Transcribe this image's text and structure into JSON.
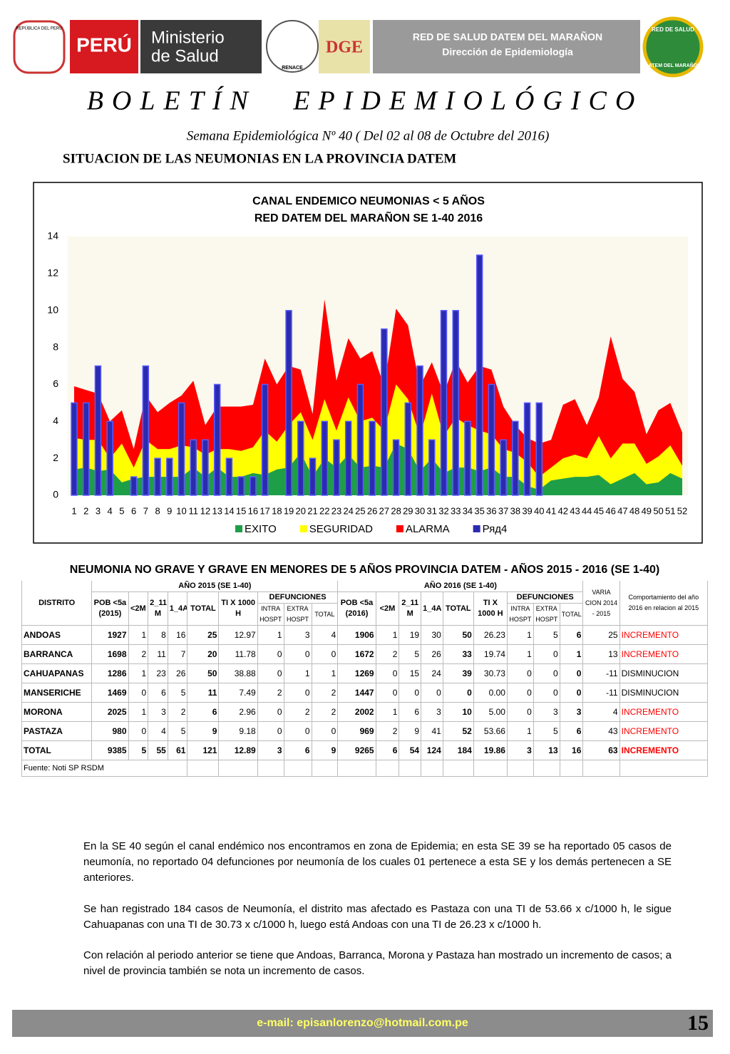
{
  "header": {
    "republica": "REPÚBLICA DEL PERÚ",
    "peru": "PERÚ",
    "ministerio": "Ministerio",
    "de_salud": "de Salud",
    "renace": "RENACE",
    "dge": "DGE",
    "red_title": "RED DE SALUD DATEM DEL MARAÑON",
    "red_subtitle": "Dirección de Epidemiología",
    "logo_top": "RED DE SALUD",
    "logo_bottom": "DATEM DEL MARAÑON"
  },
  "title": "BOLETÍN EPIDEMIOLÓGICO",
  "subtitle": "Semana Epidemiológica Nº 40 ( Del  02 al 08 de Octubre del 2016)",
  "section": "SITUACION DE LAS NEUMONIAS EN LA PROVINCIA DATEM",
  "chart_data": {
    "type": "area_bar",
    "title": "CANAL ENDEMICO NEUMONIAS < 5 AÑOS",
    "subtitle": "RED DATEM DEL MARAÑON  SE 1-40  2016",
    "categories": [
      "1",
      "2",
      "3",
      "4",
      "5",
      "6",
      "7",
      "8",
      "9",
      "10",
      "11",
      "12",
      "13",
      "14",
      "15",
      "16",
      "17",
      "18",
      "19",
      "20",
      "21",
      "22",
      "23",
      "24",
      "25",
      "26",
      "27",
      "28",
      "29",
      "30",
      "31",
      "32",
      "33",
      "34",
      "35",
      "36",
      "37",
      "38",
      "39",
      "40",
      "41",
      "42",
      "43",
      "44",
      "45",
      "46",
      "47",
      "48",
      "49",
      "50",
      "51",
      "52"
    ],
    "series": [
      {
        "name": "ALARMA",
        "color": "#ff0000",
        "kind": "area",
        "values": [
          5.9,
          5.7,
          5.5,
          4.0,
          4.6,
          2.5,
          5.4,
          4.5,
          5.0,
          5.4,
          6.2,
          3.8,
          4.8,
          4.8,
          4.8,
          4.9,
          7.4,
          6.0,
          7.0,
          6.8,
          4.4,
          10.6,
          6.2,
          8.5,
          7.4,
          7.8,
          5.9,
          10.1,
          9.2,
          5.9,
          7.2,
          5.5,
          7.3,
          6.1,
          7.0,
          6.8,
          4.8,
          3.8,
          3.1,
          2.8,
          3.0,
          4.9,
          5.2,
          3.8,
          5.3,
          8.6,
          6.3,
          5.6,
          3.3,
          4.6,
          5.0,
          3.4
        ]
      },
      {
        "name": "SEGURIDAD",
        "color": "#ffff00",
        "kind": "area",
        "values": [
          3.1,
          3.0,
          3.0,
          2.0,
          2.8,
          1.5,
          3.0,
          2.5,
          2.5,
          2.7,
          2.6,
          2.2,
          2.5,
          2.5,
          2.4,
          2.6,
          3.5,
          2.9,
          3.8,
          4.5,
          3.0,
          5.2,
          3.5,
          5.3,
          4.0,
          4.2,
          3.5,
          6.0,
          5.2,
          3.2,
          5.5,
          3.2,
          4.2,
          3.8,
          3.5,
          3.3,
          2.5,
          2.3,
          1.8,
          1.0,
          1.5,
          2.0,
          2.2,
          2.0,
          3.2,
          2.0,
          2.8,
          2.8,
          1.7,
          2.1,
          2.7,
          1.6
        ]
      },
      {
        "name": "EXITO",
        "color": "#1f9e48",
        "kind": "area",
        "values": [
          1.4,
          1.5,
          1.3,
          1.4,
          0.7,
          0.9,
          1.0,
          1.0,
          1.0,
          1.0,
          1.5,
          1.0,
          1.5,
          1.0,
          1.0,
          1.2,
          1.1,
          1.4,
          1.5,
          2.3,
          1.0,
          2.0,
          1.5,
          2.2,
          1.5,
          1.6,
          1.5,
          2.8,
          2.5,
          1.3,
          2.0,
          1.2,
          1.5,
          1.5,
          1.3,
          1.5,
          1.0,
          1.0,
          0.5,
          0.3,
          0.8,
          0.9,
          1.0,
          1.0,
          1.1,
          0.6,
          0.9,
          1.2,
          0.6,
          0.7,
          1.2,
          0.9
        ]
      },
      {
        "name": "Ряд4",
        "color": "#2b2bb0",
        "kind": "bar",
        "values": [
          5,
          5,
          7,
          4,
          0,
          1,
          7,
          2,
          2,
          5,
          3,
          3,
          6,
          2,
          1,
          1,
          6,
          0,
          10,
          4,
          2,
          4,
          3,
          4,
          6,
          4,
          9,
          3,
          5,
          7,
          3,
          10,
          10,
          4,
          13,
          6,
          3,
          4,
          5,
          5,
          null,
          null,
          null,
          null,
          null,
          null,
          null,
          null,
          null,
          null,
          null,
          null
        ]
      }
    ],
    "legend_order": [
      2,
      1,
      0,
      3
    ],
    "ylim": [
      0,
      14
    ],
    "yticks": [
      0,
      2,
      4,
      6,
      8,
      10,
      12,
      14
    ]
  },
  "table": {
    "title": "NEUMONIA NO GRAVE Y GRAVE EN MENORES DE 5 AÑOS PROVINCIA DATEM  - AÑOS 2015 - 2016 (SE 1-40)",
    "groups": [
      "AÑO 2015 (SE 1-40)",
      "AÑO 2016 (SE 1-40)"
    ],
    "defunciones": [
      "DEFUNCIONES",
      "DEFUNCIONES"
    ],
    "columns": [
      "DISTRITO",
      "POB <5a (2015)",
      "<2M",
      "2_11 M",
      "1_4A",
      "TOTAL",
      "TI X 1000 H",
      "INTRA HOSPT",
      "EXTRA HOSPT",
      "TOTAL",
      "POB <5a (2016)",
      "<2M",
      "2_11 M",
      "1_4A",
      "TOTAL",
      "TI X 1000 H",
      "INTRA HOSPT",
      "EXTRA HOSPT",
      "TOTAL",
      "VARIA CION 2014 - 2015",
      "Comportamiento del año 2016 en relacion al 2015"
    ],
    "rows": [
      [
        "ANDOAS",
        "1927",
        "1",
        "8",
        "16",
        "25",
        "12.97",
        "1",
        "3",
        "4",
        "1906",
        "1",
        "19",
        "30",
        "50",
        "26.23",
        "1",
        "5",
        "6",
        "25",
        "INCREMENTO"
      ],
      [
        "BARRANCA",
        "1698",
        "2",
        "11",
        "7",
        "20",
        "11.78",
        "0",
        "0",
        "0",
        "1672",
        "2",
        "5",
        "26",
        "33",
        "19.74",
        "1",
        "0",
        "1",
        "13",
        "INCREMENTO"
      ],
      [
        "CAHUAPANAS",
        "1286",
        "1",
        "23",
        "26",
        "50",
        "38.88",
        "0",
        "1",
        "1",
        "1269",
        "0",
        "15",
        "24",
        "39",
        "30.73",
        "0",
        "0",
        "0",
        "-11",
        "DISMINUCION"
      ],
      [
        "MANSERICHE",
        "1469",
        "0",
        "6",
        "5",
        "11",
        "7.49",
        "2",
        "0",
        "2",
        "1447",
        "0",
        "0",
        "0",
        "0",
        "0.00",
        "0",
        "0",
        "0",
        "-11",
        "DISMINUCION"
      ],
      [
        "MORONA",
        "2025",
        "1",
        "3",
        "2",
        "6",
        "2.96",
        "0",
        "2",
        "2",
        "2002",
        "1",
        "6",
        "3",
        "10",
        "5.00",
        "0",
        "3",
        "3",
        "4",
        "INCREMENTO"
      ],
      [
        "PASTAZA",
        "980",
        "0",
        "4",
        "5",
        "9",
        "9.18",
        "0",
        "0",
        "0",
        "969",
        "2",
        "9",
        "41",
        "52",
        "53.66",
        "1",
        "5",
        "6",
        "43",
        "INCREMENTO"
      ],
      [
        "TOTAL",
        "9385",
        "5",
        "55",
        "61",
        "121",
        "12.89",
        "3",
        "6",
        "9",
        "9265",
        "6",
        "54",
        "124",
        "184",
        "19.86",
        "3",
        "13",
        "16",
        "63",
        "INCREMENTO"
      ]
    ],
    "status_colors": [
      "#ff0000",
      "#ff0000",
      "#000000",
      "#000000",
      "#ff0000",
      "#ff0000",
      "#ff0000"
    ],
    "source": "Fuente: Noti SP RSDM"
  },
  "paragraphs": [
    "En la SE 40 según el canal endémico nos encontramos en zona de Epidemia; en esta SE 39 se ha reportado 05 casos de neumonía, no reportado 04 defunciones por neumonía de los cuales 01 pertenece a esta SE y los demás pertenecen a SE anteriores.",
    "Se han registrado 184 casos de Neumonía, el distrito mas afectado es  Pastaza con una TI de 53.66 x c/1000 h, le sigue Cahuapanas con una TI de 30.73 x c/1000 h, luego está Andoas con una TI de 26.23 x c/1000 h.",
    "Con relación al periodo anterior se tiene que Andoas, Barranca, Morona y Pastaza han mostrado un incremento de casos; a nivel de provincia también se nota un incremento de casos."
  ],
  "footer": {
    "email": "e-mail: episanlorenzo@hotmail.com.pe",
    "page": "15"
  }
}
